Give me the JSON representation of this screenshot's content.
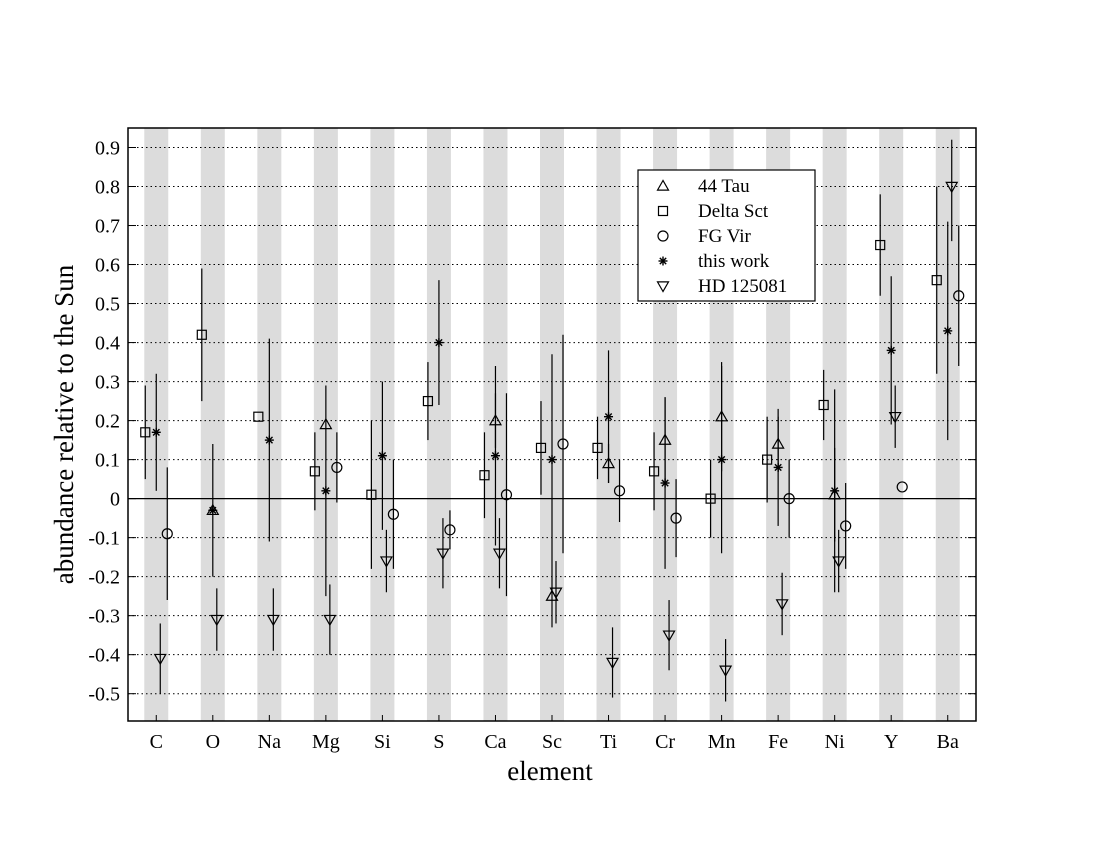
{
  "chart_data": {
    "type": "scatter",
    "xlabel": "element",
    "ylabel": "abundance relative to the Sun",
    "ylim": [
      -0.57,
      0.95
    ],
    "yticks": [
      "-0.5",
      "-0.4",
      "-0.3",
      "-0.2",
      "-0.1",
      "0",
      "0.1",
      "0.2",
      "0.3",
      "0.4",
      "0.5",
      "0.6",
      "0.7",
      "0.8",
      "0.9"
    ],
    "categories": [
      "C",
      "O",
      "Na",
      "Mg",
      "Si",
      "S",
      "Ca",
      "Sc",
      "Ti",
      "Cr",
      "Mn",
      "Fe",
      "Ni",
      "Y",
      "Ba"
    ],
    "grid": "horizontal dotted",
    "band_color": "#dcdcdc",
    "legend_position": "top-right",
    "series": [
      {
        "name": "44 Tau",
        "marker": "triangle-up",
        "points": [
          {
            "el": "O",
            "y": -0.03,
            "lo": -0.03,
            "hi": -0.03
          },
          {
            "el": "Mg",
            "y": 0.19,
            "lo": 0.19,
            "hi": 0.19
          },
          {
            "el": "Ca",
            "y": 0.2,
            "lo": 0.13,
            "hi": 0.27
          },
          {
            "el": "Sc",
            "y": -0.25,
            "lo": -0.33,
            "hi": -0.17
          },
          {
            "el": "Ti",
            "y": 0.09,
            "lo": 0.04,
            "hi": 0.14
          },
          {
            "el": "Cr",
            "y": 0.15,
            "lo": 0.04,
            "hi": 0.26
          },
          {
            "el": "Mn",
            "y": 0.21,
            "lo": 0.07,
            "hi": 0.35
          },
          {
            "el": "Fe",
            "y": 0.14,
            "lo": 0.07,
            "hi": 0.21
          },
          {
            "el": "Ni",
            "y": 0.01,
            "lo": -0.11,
            "hi": 0.13
          }
        ]
      },
      {
        "name": "Delta Sct",
        "marker": "square",
        "points": [
          {
            "el": "C",
            "y": 0.17,
            "lo": 0.05,
            "hi": 0.29
          },
          {
            "el": "O",
            "y": 0.42,
            "lo": 0.25,
            "hi": 0.59
          },
          {
            "el": "Na",
            "y": 0.21,
            "lo": 0.21,
            "hi": 0.21
          },
          {
            "el": "Mg",
            "y": 0.07,
            "lo": -0.03,
            "hi": 0.17
          },
          {
            "el": "Si",
            "y": 0.01,
            "lo": -0.18,
            "hi": 0.2
          },
          {
            "el": "S",
            "y": 0.25,
            "lo": 0.15,
            "hi": 0.35
          },
          {
            "el": "Ca",
            "y": 0.06,
            "lo": -0.05,
            "hi": 0.17
          },
          {
            "el": "Sc",
            "y": 0.13,
            "lo": 0.01,
            "hi": 0.25
          },
          {
            "el": "Ti",
            "y": 0.13,
            "lo": 0.05,
            "hi": 0.21
          },
          {
            "el": "Cr",
            "y": 0.07,
            "lo": -0.03,
            "hi": 0.17
          },
          {
            "el": "Mn",
            "y": 0.0,
            "lo": -0.1,
            "hi": 0.1
          },
          {
            "el": "Fe",
            "y": 0.1,
            "lo": -0.01,
            "hi": 0.21
          },
          {
            "el": "Ni",
            "y": 0.24,
            "lo": 0.15,
            "hi": 0.33
          },
          {
            "el": "Y",
            "y": 0.65,
            "lo": 0.52,
            "hi": 0.78
          },
          {
            "el": "Ba",
            "y": 0.56,
            "lo": 0.32,
            "hi": 0.8
          }
        ]
      },
      {
        "name": "FG Vir",
        "marker": "circle",
        "points": [
          {
            "el": "C",
            "y": -0.09,
            "lo": -0.26,
            "hi": 0.08
          },
          {
            "el": "Mg",
            "y": 0.08,
            "lo": -0.01,
            "hi": 0.17
          },
          {
            "el": "Si",
            "y": -0.04,
            "lo": -0.18,
            "hi": 0.1
          },
          {
            "el": "S",
            "y": -0.08,
            "lo": -0.13,
            "hi": -0.03
          },
          {
            "el": "Ca",
            "y": 0.01,
            "lo": -0.25,
            "hi": 0.27
          },
          {
            "el": "Sc",
            "y": 0.14,
            "lo": -0.14,
            "hi": 0.42
          },
          {
            "el": "Ti",
            "y": 0.02,
            "lo": -0.06,
            "hi": 0.1
          },
          {
            "el": "Cr",
            "y": -0.05,
            "lo": -0.15,
            "hi": 0.05
          },
          {
            "el": "Fe",
            "y": 0.0,
            "lo": -0.1,
            "hi": 0.1
          },
          {
            "el": "Ni",
            "y": -0.07,
            "lo": -0.18,
            "hi": 0.04
          },
          {
            "el": "Y",
            "y": 0.03,
            "lo": 0.03,
            "hi": 0.03
          },
          {
            "el": "Ba",
            "y": 0.52,
            "lo": 0.34,
            "hi": 0.7
          }
        ]
      },
      {
        "name": "this work",
        "marker": "asterisk",
        "points": [
          {
            "el": "C",
            "y": 0.17,
            "lo": 0.02,
            "hi": 0.32
          },
          {
            "el": "O",
            "y": -0.03,
            "lo": -0.2,
            "hi": 0.14
          },
          {
            "el": "Na",
            "y": 0.15,
            "lo": -0.11,
            "hi": 0.41
          },
          {
            "el": "Mg",
            "y": 0.02,
            "lo": -0.25,
            "hi": 0.29
          },
          {
            "el": "Si",
            "y": 0.11,
            "lo": -0.08,
            "hi": 0.3
          },
          {
            "el": "S",
            "y": 0.4,
            "lo": 0.24,
            "hi": 0.56
          },
          {
            "el": "Ca",
            "y": 0.11,
            "lo": -0.12,
            "hi": 0.34
          },
          {
            "el": "Sc",
            "y": 0.1,
            "lo": -0.17,
            "hi": 0.37
          },
          {
            "el": "Ti",
            "y": 0.21,
            "lo": 0.04,
            "hi": 0.38
          },
          {
            "el": "Cr",
            "y": 0.04,
            "lo": -0.18,
            "hi": 0.26
          },
          {
            "el": "Mn",
            "y": 0.1,
            "lo": -0.14,
            "hi": 0.34
          },
          {
            "el": "Fe",
            "y": 0.08,
            "lo": -0.07,
            "hi": 0.23
          },
          {
            "el": "Ni",
            "y": 0.02,
            "lo": -0.24,
            "hi": 0.28
          },
          {
            "el": "Y",
            "y": 0.38,
            "lo": 0.19,
            "hi": 0.57
          },
          {
            "el": "Ba",
            "y": 0.43,
            "lo": 0.15,
            "hi": 0.71
          }
        ]
      },
      {
        "name": "HD 125081",
        "marker": "triangle-down",
        "points": [
          {
            "el": "C",
            "y": -0.41,
            "lo": -0.5,
            "hi": -0.32
          },
          {
            "el": "O",
            "y": -0.31,
            "lo": -0.39,
            "hi": -0.23
          },
          {
            "el": "Na",
            "y": -0.31,
            "lo": -0.39,
            "hi": -0.23
          },
          {
            "el": "Mg",
            "y": -0.31,
            "lo": -0.4,
            "hi": -0.22
          },
          {
            "el": "Si",
            "y": -0.16,
            "lo": -0.24,
            "hi": -0.08
          },
          {
            "el": "S",
            "y": -0.14,
            "lo": -0.23,
            "hi": -0.05
          },
          {
            "el": "Ca",
            "y": -0.14,
            "lo": -0.23,
            "hi": -0.05
          },
          {
            "el": "Sc",
            "y": -0.24,
            "lo": -0.32,
            "hi": -0.16
          },
          {
            "el": "Ti",
            "y": -0.42,
            "lo": -0.51,
            "hi": -0.33
          },
          {
            "el": "Cr",
            "y": -0.35,
            "lo": -0.44,
            "hi": -0.26
          },
          {
            "el": "Mn",
            "y": -0.44,
            "lo": -0.52,
            "hi": -0.36
          },
          {
            "el": "Fe",
            "y": -0.27,
            "lo": -0.35,
            "hi": -0.19
          },
          {
            "el": "Ni",
            "y": -0.16,
            "lo": -0.24,
            "hi": -0.08
          },
          {
            "el": "Y",
            "y": 0.21,
            "lo": 0.13,
            "hi": 0.29
          },
          {
            "el": "Ba",
            "y": 0.8,
            "lo": 0.66,
            "hi": 0.92
          }
        ]
      }
    ]
  }
}
